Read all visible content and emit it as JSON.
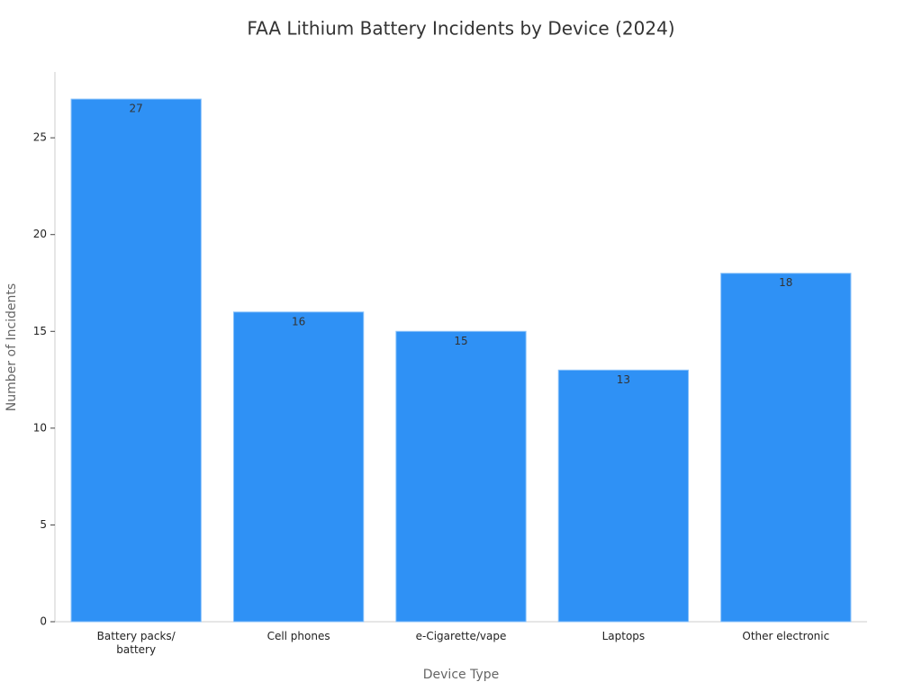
{
  "chart_data": {
    "type": "bar",
    "title": "FAA Lithium Battery Incidents by Device (2024)",
    "x_label": "Device Type",
    "y_label": "Number of Incidents",
    "categories": [
      "Battery packs/\nbattery",
      "Cell phones",
      "e-Cigarette/vape",
      "Laptops",
      "Other electronic"
    ],
    "values": [
      27,
      16,
      15,
      13,
      18
    ],
    "color": "#2f91f5",
    "ylim": [
      0,
      28.4
    ],
    "yticks": [
      0,
      5,
      10,
      15,
      20,
      25
    ],
    "grid": false
  }
}
